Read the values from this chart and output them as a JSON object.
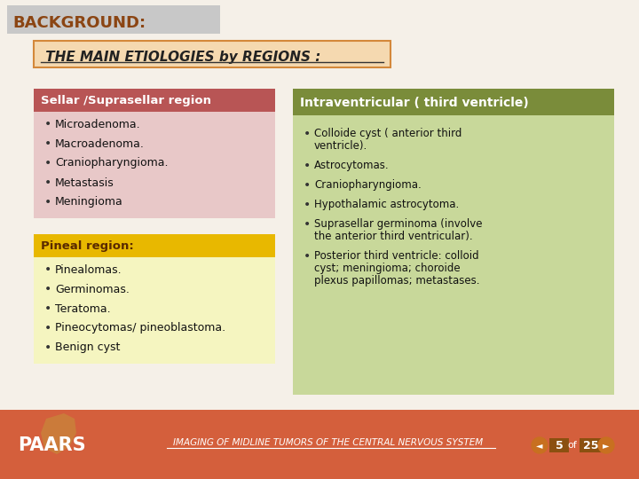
{
  "bg_color": "#f5f0e8",
  "footer_color": "#d45f3c",
  "title_bg": "#c8c8c8",
  "title_text": "BACKGROUND:",
  "title_color": "#8B4513",
  "subtitle_text": " THE MAIN ETIOLOGIES by REGIONS :",
  "subtitle_bg": "#f5d9b0",
  "subtitle_border": "#d4883a",
  "sellar_header": "Sellar /Suprasellar region",
  "sellar_header_bg": "#b85555",
  "sellar_body_bg": "#e8c8c8",
  "sellar_items": [
    "Microadenoma.",
    "Macroadenoma.",
    "Craniopharyngioma.",
    "Metastasis",
    "Meningioma"
  ],
  "pineal_header": "Pineal region:",
  "pineal_header_bg": "#e8b800",
  "pineal_body_bg": "#f5f5c0",
  "pineal_items": [
    "Pinealomas.",
    "Germinomas.",
    "Teratoma.",
    "Pineocytomas/ pineoblastoma.",
    "Benign cyst"
  ],
  "intra_header": "Intraventricular ( third ventricle)",
  "intra_header_bg": "#7a8c3a",
  "intra_body_bg": "#c8d89a",
  "intra_items_lines": [
    [
      "Colloide cyst ( anterior third",
      "ventricle)."
    ],
    [
      "Astrocytomas."
    ],
    [
      "Craniopharyngioma."
    ],
    [
      "Hypothalamic astrocytoma."
    ],
    [
      "Suprasellar germinoma (involve",
      "the anterior third ventricular)."
    ],
    [
      "Posterior third ventricle: colloid",
      "cyst; meningioma; choroide",
      "plexus papillomas; metastases."
    ]
  ],
  "footer_text": "IMAGING OF MIDLINE TUMORS OF THE CENTRAL NERVOUS SYSTEM",
  "footer_logo": "PAARS",
  "page_num": "5",
  "page_total": "25",
  "footer_arrow_color": "#c87020",
  "footer_page_bg": "#8B5010"
}
